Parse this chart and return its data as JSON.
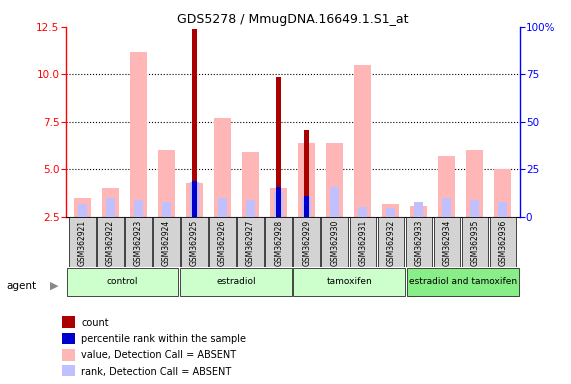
{
  "title": "GDS5278 / MmugDNA.16649.1.S1_at",
  "samples": [
    "GSM362921",
    "GSM362922",
    "GSM362923",
    "GSM362924",
    "GSM362925",
    "GSM362926",
    "GSM362927",
    "GSM362928",
    "GSM362929",
    "GSM362930",
    "GSM362931",
    "GSM362932",
    "GSM362933",
    "GSM362934",
    "GSM362935",
    "GSM362936"
  ],
  "groups": [
    {
      "label": "control",
      "color": "#ccffcc",
      "start": 0,
      "end": 4
    },
    {
      "label": "estradiol",
      "color": "#ccffcc",
      "start": 4,
      "end": 8
    },
    {
      "label": "tamoxifen",
      "color": "#ccffcc",
      "start": 8,
      "end": 12
    },
    {
      "label": "estradiol and tamoxifen",
      "color": "#88ee88",
      "start": 12,
      "end": 16
    }
  ],
  "value_pink": [
    3.5,
    4.0,
    11.2,
    6.0,
    4.3,
    7.7,
    5.9,
    4.0,
    6.4,
    6.4,
    10.5,
    3.2,
    3.1,
    5.7,
    6.0,
    5.0
  ],
  "rank_blue_light": [
    3.2,
    3.5,
    3.4,
    3.3,
    4.35,
    3.5,
    3.4,
    3.8,
    3.55,
    4.1,
    3.0,
    2.95,
    3.3,
    3.5,
    3.4,
    3.3
  ],
  "count_red": [
    0,
    0,
    0,
    0,
    12.4,
    0,
    0,
    9.85,
    7.1,
    0,
    0,
    0,
    0,
    0,
    0,
    0
  ],
  "rank_blue_dark": [
    0,
    0,
    0,
    0,
    4.4,
    0,
    0,
    4.05,
    3.6,
    0,
    0,
    0,
    0,
    0,
    0,
    0
  ],
  "ylim": [
    2.5,
    12.5
  ],
  "yticks": [
    2.5,
    5.0,
    7.5,
    10.0,
    12.5
  ],
  "grid_lines": [
    5.0,
    7.5,
    10.0
  ],
  "y2ticks": [
    0,
    25,
    50,
    75,
    100
  ],
  "y2tick_labels": [
    "0",
    "25",
    "50",
    "75",
    "100%"
  ],
  "bar_width": 0.6,
  "pink_color": "#ffb6b6",
  "blue_light_color": "#c0c0ff",
  "red_dark_color": "#aa0000",
  "blue_dark_color": "#0000cc",
  "legend_items": [
    {
      "color": "#aa0000",
      "label": "count"
    },
    {
      "color": "#0000cc",
      "label": "percentile rank within the sample"
    },
    {
      "color": "#ffb6b6",
      "label": "value, Detection Call = ABSENT"
    },
    {
      "color": "#c0c0ff",
      "label": "rank, Detection Call = ABSENT"
    }
  ]
}
